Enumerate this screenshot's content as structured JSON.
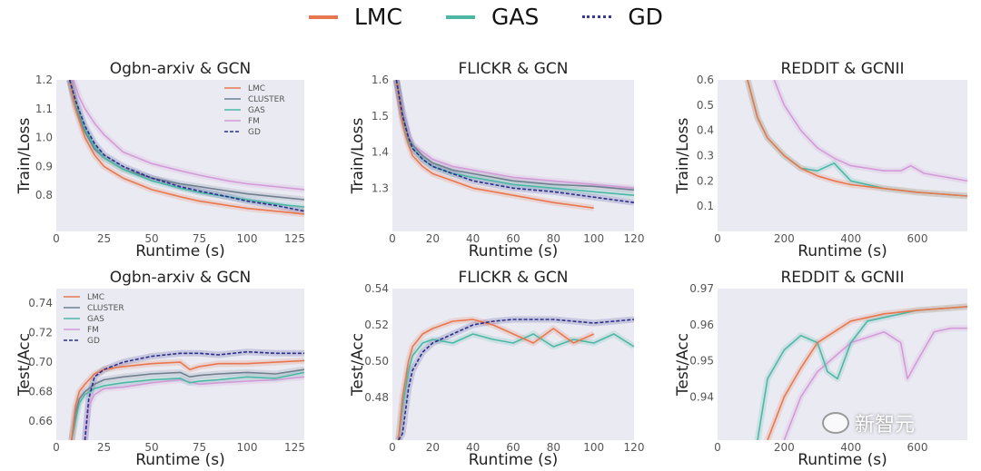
{
  "legend_top": [
    {
      "label": "LMC",
      "color": "#e8774f",
      "style": "solid"
    },
    {
      "label": "GAS",
      "color": "#4cb7a5",
      "style": "solid"
    },
    {
      "label": "GD",
      "color": "#3a3a96",
      "style": "dotted"
    }
  ],
  "colors": {
    "LMC": "#e8774f",
    "CLUSTER": "#6f7f8f",
    "GAS": "#4cb7a5",
    "FM": "#d39ad8",
    "GD": "#2c2f8a",
    "plot_bg": "#eaeaf2"
  },
  "watermark": "新智元",
  "chart_data": [
    {
      "type": "line",
      "title": "Ogbn-arxiv & GCN",
      "xlabel": "Runtime (s)",
      "ylabel": "Train/Loss",
      "xlim": [
        0,
        130
      ],
      "ylim": [
        0.675,
        1.2
      ],
      "xticks": [
        0,
        25,
        50,
        75,
        100,
        125
      ],
      "yticks": [
        0.8,
        0.9,
        1.0,
        1.1,
        1.2
      ],
      "legend": [
        "LMC",
        "CLUSTER",
        "GAS",
        "FM",
        "GD"
      ],
      "legend_position": "top-right",
      "series": [
        {
          "name": "FM",
          "x": [
            9,
            12,
            15,
            20,
            25,
            35,
            50,
            65,
            75,
            90,
            100,
            115,
            130
          ],
          "y": [
            1.2,
            1.14,
            1.1,
            1.05,
            1.01,
            0.95,
            0.91,
            0.885,
            0.87,
            0.85,
            0.84,
            0.83,
            0.82
          ]
        },
        {
          "name": "CLUSTER",
          "x": [
            7,
            10,
            15,
            20,
            25,
            35,
            50,
            65,
            75,
            90,
            100,
            115,
            130
          ],
          "y": [
            1.2,
            1.11,
            1.02,
            0.96,
            0.93,
            0.89,
            0.86,
            0.84,
            0.83,
            0.815,
            0.805,
            0.795,
            0.785
          ]
        },
        {
          "name": "GAS",
          "x": [
            7,
            10,
            15,
            20,
            25,
            35,
            50,
            65,
            75,
            90,
            100,
            115,
            130
          ],
          "y": [
            1.2,
            1.12,
            1.03,
            0.97,
            0.93,
            0.89,
            0.85,
            0.825,
            0.81,
            0.795,
            0.785,
            0.77,
            0.76
          ]
        },
        {
          "name": "LMC",
          "x": [
            7,
            10,
            15,
            20,
            25,
            35,
            50,
            65,
            75,
            90,
            100,
            115,
            130
          ],
          "y": [
            1.2,
            1.1,
            1.0,
            0.94,
            0.9,
            0.86,
            0.82,
            0.795,
            0.78,
            0.765,
            0.755,
            0.745,
            0.735
          ]
        },
        {
          "name": "GD",
          "x": [
            7,
            10,
            15,
            20,
            25,
            35,
            50,
            65,
            75,
            90,
            100,
            115,
            130
          ],
          "y": [
            1.2,
            1.13,
            1.04,
            0.98,
            0.94,
            0.9,
            0.86,
            0.83,
            0.815,
            0.795,
            0.78,
            0.765,
            0.745
          ]
        }
      ]
    },
    {
      "type": "line",
      "title": "FLICKR & GCN",
      "xlabel": "Runtime (s)",
      "ylabel": "Train/Loss",
      "xlim": [
        0,
        120
      ],
      "ylim": [
        1.18,
        1.6
      ],
      "xticks": [
        0,
        20,
        40,
        60,
        80,
        100,
        120
      ],
      "yticks": [
        1.3,
        1.4,
        1.5,
        1.6
      ],
      "series": [
        {
          "name": "FM",
          "x": [
            2,
            5,
            8,
            10,
            15,
            20,
            30,
            40,
            60,
            80,
            100,
            120
          ],
          "y": [
            1.6,
            1.52,
            1.45,
            1.42,
            1.4,
            1.38,
            1.36,
            1.35,
            1.33,
            1.32,
            1.31,
            1.3
          ]
        },
        {
          "name": "CLUSTER",
          "x": [
            2,
            5,
            8,
            10,
            15,
            20,
            30,
            40,
            60,
            80,
            100,
            120
          ],
          "y": [
            1.6,
            1.51,
            1.44,
            1.42,
            1.39,
            1.37,
            1.35,
            1.34,
            1.32,
            1.31,
            1.305,
            1.295
          ]
        },
        {
          "name": "GAS",
          "x": [
            2,
            5,
            8,
            10,
            15,
            20,
            30,
            40,
            60,
            80,
            100,
            120
          ],
          "y": [
            1.6,
            1.5,
            1.43,
            1.41,
            1.38,
            1.36,
            1.34,
            1.33,
            1.31,
            1.3,
            1.29,
            1.28
          ]
        },
        {
          "name": "LMC",
          "x": [
            2,
            5,
            8,
            10,
            15,
            20,
            30,
            40,
            60,
            80,
            100
          ],
          "y": [
            1.6,
            1.48,
            1.42,
            1.39,
            1.36,
            1.34,
            1.32,
            1.3,
            1.28,
            1.26,
            1.245
          ]
        },
        {
          "name": "GD",
          "x": [
            2,
            5,
            8,
            10,
            15,
            20,
            30,
            40,
            60,
            80,
            100,
            120
          ],
          "y": [
            1.6,
            1.5,
            1.44,
            1.41,
            1.38,
            1.36,
            1.34,
            1.32,
            1.3,
            1.29,
            1.275,
            1.26
          ]
        }
      ]
    },
    {
      "type": "line",
      "title": "REDDIT & GCNII",
      "xlabel": "Runtime (s)",
      "ylabel": "Train/Loss",
      "xlim": [
        0,
        750
      ],
      "ylim": [
        0,
        0.6
      ],
      "xticks": [
        0,
        200,
        400,
        600
      ],
      "yticks": [
        0.1,
        0.2,
        0.3,
        0.4,
        0.5,
        0.6
      ],
      "series": [
        {
          "name": "FM",
          "x": [
            170,
            200,
            250,
            300,
            350,
            400,
            500,
            550,
            580,
            620,
            750
          ],
          "y": [
            0.6,
            0.5,
            0.4,
            0.33,
            0.29,
            0.26,
            0.24,
            0.24,
            0.26,
            0.23,
            0.2
          ]
        },
        {
          "name": "GAS",
          "x": [
            90,
            120,
            150,
            200,
            250,
            300,
            350,
            400,
            500,
            600,
            750
          ],
          "y": [
            0.6,
            0.45,
            0.37,
            0.3,
            0.25,
            0.24,
            0.27,
            0.2,
            0.17,
            0.155,
            0.14
          ]
        },
        {
          "name": "LMC",
          "x": [
            90,
            120,
            150,
            200,
            250,
            300,
            350,
            400,
            500,
            600,
            750
          ],
          "y": [
            0.6,
            0.45,
            0.37,
            0.3,
            0.25,
            0.22,
            0.2,
            0.185,
            0.17,
            0.155,
            0.14
          ]
        }
      ]
    },
    {
      "type": "line",
      "title": "Ogbn-arxiv & GCN",
      "xlabel": "Runtime (s)",
      "ylabel": "Test/Acc",
      "xlim": [
        0,
        130
      ],
      "ylim": [
        0.647,
        0.75
      ],
      "xticks": [
        0,
        25,
        50,
        75,
        100,
        125
      ],
      "yticks": [
        0.66,
        0.68,
        0.7,
        0.72,
        0.74
      ],
      "legend": [
        "LMC",
        "CLUSTER",
        "GAS",
        "FM",
        "GD"
      ],
      "legend_position": "top-left",
      "series": [
        {
          "name": "FM",
          "x": [
            15,
            17,
            20,
            25,
            35,
            50,
            65,
            75,
            85,
            100,
            115,
            130
          ],
          "y": [
            0.647,
            0.67,
            0.678,
            0.682,
            0.683,
            0.686,
            0.688,
            0.685,
            0.686,
            0.687,
            0.688,
            0.69
          ]
        },
        {
          "name": "GAS",
          "x": [
            8,
            10,
            12,
            15,
            20,
            25,
            35,
            50,
            65,
            70,
            75,
            85,
            100,
            115,
            130
          ],
          "y": [
            0.647,
            0.66,
            0.672,
            0.678,
            0.682,
            0.684,
            0.686,
            0.688,
            0.689,
            0.686,
            0.687,
            0.688,
            0.69,
            0.689,
            0.693
          ]
        },
        {
          "name": "CLUSTER",
          "x": [
            8,
            10,
            12,
            15,
            20,
            25,
            35,
            50,
            65,
            70,
            75,
            85,
            100,
            115,
            130
          ],
          "y": [
            0.647,
            0.665,
            0.675,
            0.68,
            0.685,
            0.688,
            0.69,
            0.692,
            0.693,
            0.69,
            0.691,
            0.692,
            0.693,
            0.692,
            0.695
          ]
        },
        {
          "name": "LMC",
          "x": [
            8,
            10,
            12,
            15,
            20,
            25,
            35,
            50,
            65,
            70,
            75,
            85,
            100,
            115,
            130
          ],
          "y": [
            0.647,
            0.67,
            0.68,
            0.685,
            0.692,
            0.695,
            0.697,
            0.699,
            0.7,
            0.695,
            0.697,
            0.699,
            0.699,
            0.7,
            0.701
          ]
        },
        {
          "name": "GD",
          "x": [
            15,
            17,
            20,
            25,
            35,
            50,
            65,
            75,
            85,
            100,
            115,
            130
          ],
          "y": [
            0.647,
            0.675,
            0.69,
            0.695,
            0.7,
            0.704,
            0.706,
            0.706,
            0.705,
            0.707,
            0.706,
            0.706
          ]
        }
      ]
    },
    {
      "type": "line",
      "title": "FLICKR & GCN",
      "xlabel": "Runtime (s)",
      "ylabel": "Test/Acc",
      "xlim": [
        0,
        120
      ],
      "ylim": [
        0.4565,
        0.54
      ],
      "xticks": [
        0,
        20,
        40,
        60,
        80,
        100,
        120
      ],
      "yticks": [
        0.48,
        0.5,
        0.52,
        0.54
      ],
      "series": [
        {
          "name": "GAS",
          "x": [
            3,
            5,
            8,
            10,
            15,
            20,
            30,
            40,
            50,
            60,
            70,
            80,
            90,
            100,
            110,
            120
          ],
          "y": [
            0.4565,
            0.475,
            0.495,
            0.503,
            0.51,
            0.512,
            0.51,
            0.515,
            0.512,
            0.51,
            0.515,
            0.508,
            0.512,
            0.51,
            0.515,
            0.508
          ]
        },
        {
          "name": "LMC",
          "x": [
            3,
            5,
            8,
            10,
            15,
            20,
            30,
            40,
            50,
            60,
            70,
            80,
            90,
            100
          ],
          "y": [
            0.4565,
            0.48,
            0.5,
            0.508,
            0.515,
            0.518,
            0.522,
            0.523,
            0.52,
            0.515,
            0.51,
            0.518,
            0.51,
            0.515
          ]
        },
        {
          "name": "GD",
          "x": [
            3,
            5,
            8,
            10,
            15,
            20,
            30,
            40,
            50,
            60,
            70,
            80,
            90,
            100,
            110,
            120
          ],
          "y": [
            0.4565,
            0.46,
            0.485,
            0.495,
            0.505,
            0.51,
            0.515,
            0.52,
            0.522,
            0.523,
            0.523,
            0.523,
            0.522,
            0.521,
            0.522,
            0.523
          ]
        }
      ]
    },
    {
      "type": "line",
      "title": "REDDIT & GCNII",
      "xlabel": "Runtime (s)",
      "ylabel": "Test/Acc",
      "xlim": [
        0,
        750
      ],
      "ylim": [
        0.928,
        0.97
      ],
      "xticks": [
        0,
        200,
        400,
        600
      ],
      "yticks": [
        0.94,
        0.95,
        0.96,
        0.97
      ],
      "series": [
        {
          "name": "FM",
          "x": [
            200,
            250,
            300,
            400,
            500,
            550,
            570,
            600,
            650,
            700,
            750
          ],
          "y": [
            0.928,
            0.94,
            0.947,
            0.955,
            0.958,
            0.955,
            0.945,
            0.95,
            0.958,
            0.959,
            0.959
          ]
        },
        {
          "name": "GAS",
          "x": [
            120,
            150,
            200,
            250,
            300,
            330,
            360,
            400,
            450,
            500,
            600,
            750
          ],
          "y": [
            0.928,
            0.945,
            0.953,
            0.957,
            0.955,
            0.947,
            0.945,
            0.955,
            0.961,
            0.962,
            0.964,
            0.965
          ]
        },
        {
          "name": "LMC",
          "x": [
            150,
            200,
            250,
            300,
            400,
            500,
            600,
            750
          ],
          "y": [
            0.928,
            0.94,
            0.948,
            0.955,
            0.961,
            0.963,
            0.964,
            0.965
          ]
        }
      ]
    }
  ]
}
